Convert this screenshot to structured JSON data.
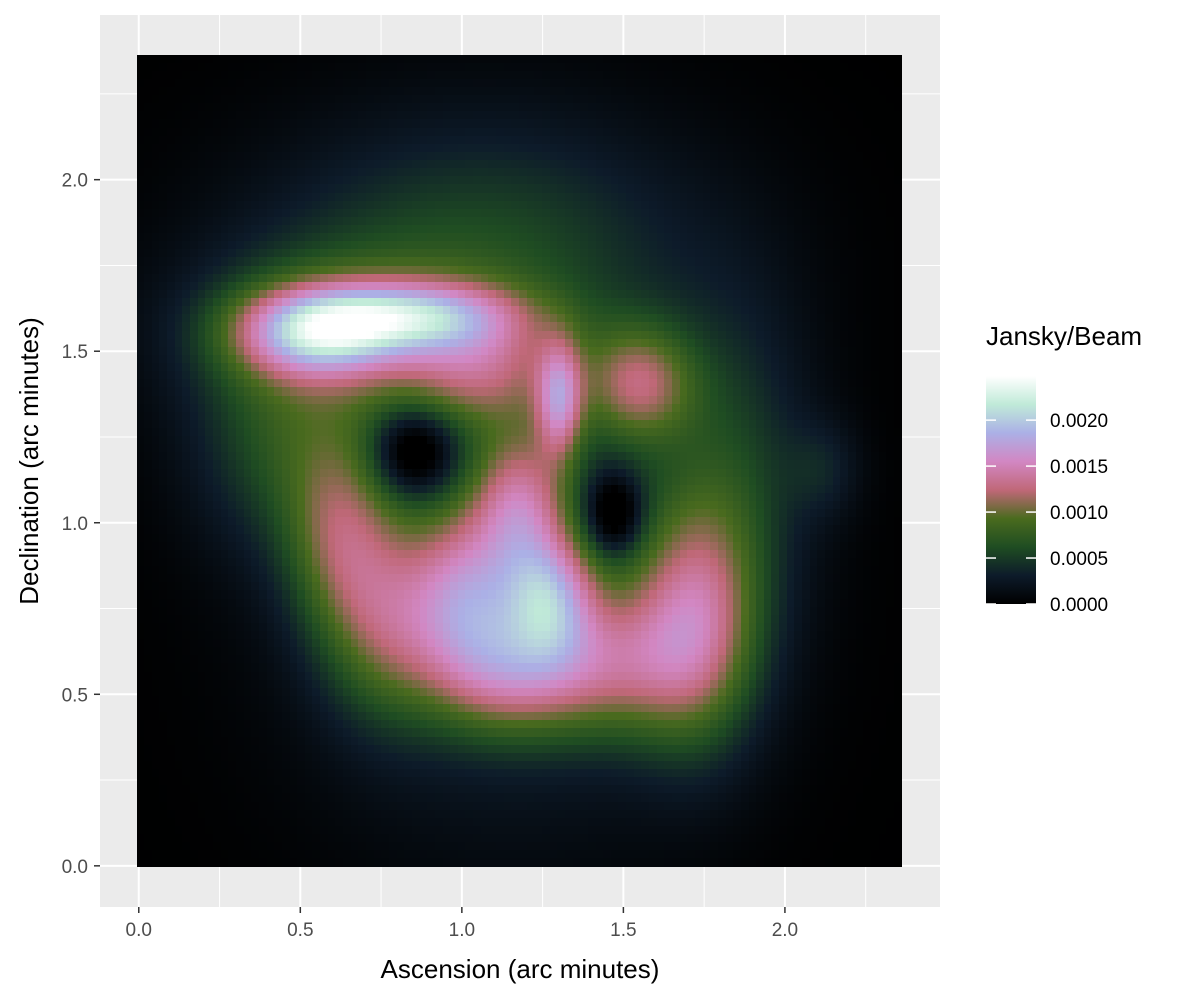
{
  "chart_data": {
    "type": "heatmap",
    "title": "",
    "xlabel": "Ascension (arc minutes)",
    "ylabel": "Declination (arc minutes)",
    "xlim": [
      -0.12,
      2.48
    ],
    "ylim": [
      -0.12,
      2.48
    ],
    "raster_extent": {
      "x": [
        -0.01,
        2.36
      ],
      "y": [
        -0.01,
        2.36
      ]
    },
    "x_ticks": [
      "0.0",
      "0.5",
      "1.0",
      "1.5",
      "2.0"
    ],
    "x_tick_values": [
      0.0,
      0.5,
      1.0,
      1.5,
      2.0
    ],
    "y_ticks": [
      "0.0",
      "0.5",
      "1.0",
      "1.5",
      "2.0"
    ],
    "y_tick_values": [
      0.0,
      0.5,
      1.0,
      1.5,
      2.0
    ],
    "grid": true,
    "background": "#ebebeb",
    "legend": {
      "title": "Jansky/Beam",
      "placement": "right",
      "labels": [
        "0.0020",
        "0.0015",
        "0.0010",
        "0.0005",
        "0.0000"
      ],
      "label_values": [
        0.002,
        0.0015,
        0.001,
        0.0005,
        0.0
      ],
      "range": [
        0.0,
        0.00248
      ],
      "colors": [
        "#000000",
        "#0d1b2a",
        "#1f4d22",
        "#4a6b1e",
        "#c06878",
        "#d287c3",
        "#abb0e6",
        "#c0ead8",
        "#ffffff"
      ]
    },
    "components": [
      {
        "x": 1.27,
        "y": 0.78,
        "sx": 0.1,
        "sy": 0.13,
        "amp": 0.0011
      },
      {
        "x": 1.15,
        "y": 0.55,
        "sx": 0.16,
        "sy": 0.13,
        "amp": 0.0008
      },
      {
        "x": 1.45,
        "y": 0.58,
        "sx": 0.18,
        "sy": 0.15,
        "amp": 0.0008
      },
      {
        "x": 1.72,
        "y": 0.7,
        "sx": 0.14,
        "sy": 0.25,
        "amp": 0.0011
      },
      {
        "x": 1.02,
        "y": 0.78,
        "sx": 0.12,
        "sy": 0.18,
        "amp": 0.001
      },
      {
        "x": 0.78,
        "y": 0.7,
        "sx": 0.14,
        "sy": 0.2,
        "amp": 0.0008
      },
      {
        "x": 0.62,
        "y": 0.95,
        "sx": 0.12,
        "sy": 0.2,
        "amp": 0.0007
      },
      {
        "x": 1.18,
        "y": 1.05,
        "sx": 0.1,
        "sy": 0.15,
        "amp": 0.0009
      },
      {
        "x": 1.3,
        "y": 1.35,
        "sx": 0.05,
        "sy": 0.12,
        "amp": 0.001
      },
      {
        "x": 1.55,
        "y": 1.4,
        "sx": 0.12,
        "sy": 0.12,
        "amp": 0.0009
      },
      {
        "x": 1.05,
        "y": 1.45,
        "sx": 0.18,
        "sy": 0.12,
        "amp": 0.0007
      },
      {
        "x": 0.55,
        "y": 1.55,
        "sx": 0.18,
        "sy": 0.09,
        "amp": 0.0013
      },
      {
        "x": 0.85,
        "y": 1.6,
        "sx": 0.22,
        "sy": 0.07,
        "amp": 0.001
      },
      {
        "x": 0.6,
        "y": 1.55,
        "sx": 0.33,
        "sy": 0.18,
        "amp": 0.0005
      },
      {
        "x": 1.05,
        "y": 1.8,
        "sx": 0.48,
        "sy": 0.28,
        "amp": 0.00048
      },
      {
        "x": 0.45,
        "y": 1.22,
        "sx": 0.2,
        "sy": 0.22,
        "amp": 0.0005
      },
      {
        "x": 1.85,
        "y": 1.15,
        "sx": 0.16,
        "sy": 0.35,
        "amp": 0.0004
      },
      {
        "x": 2.12,
        "y": 1.15,
        "sx": 0.08,
        "sy": 0.1,
        "amp": 0.00025
      },
      {
        "x": 1.15,
        "y": 0.9,
        "sx": 0.45,
        "sy": 0.55,
        "amp": 0.00045
      }
    ],
    "dips": [
      {
        "x": 0.85,
        "y": 1.2,
        "sx": 0.09,
        "sy": 0.09,
        "amp": 0.00075
      },
      {
        "x": 1.47,
        "y": 1.02,
        "sx": 0.06,
        "sy": 0.08,
        "amp": 0.0007
      }
    ]
  }
}
